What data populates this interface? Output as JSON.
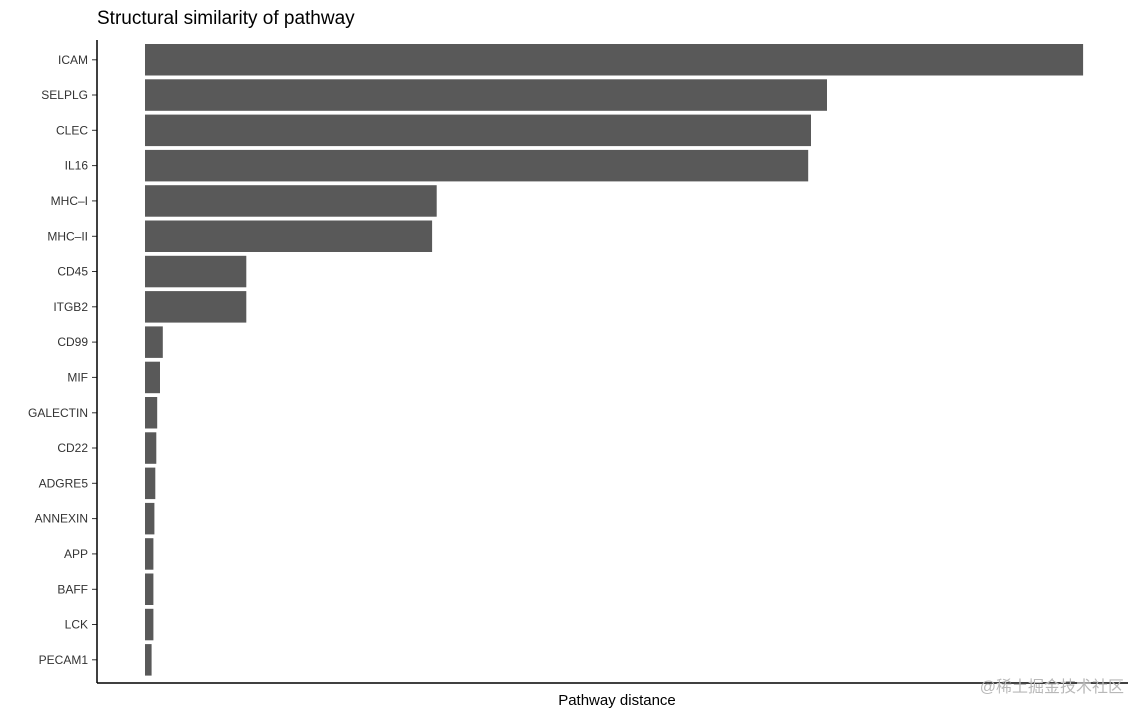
{
  "chart_data": {
    "type": "bar",
    "orientation": "horizontal",
    "title": "Structural similarity of pathway",
    "xlabel": "Pathway distance",
    "ylabel": "",
    "categories": [
      "ICAM",
      "SELPLG",
      "CLEC",
      "IL16",
      "MHC-I",
      "MHC-II",
      "CD45",
      "ITGB2",
      "CD99",
      "MIF",
      "GALECTIN",
      "CD22",
      "ADGRE5",
      "ANNEXIN",
      "APP",
      "BAFF",
      "LCK",
      "PECAM1"
    ],
    "category_labels": [
      "ICAM",
      "SELPLG",
      "CLEC",
      "IL16",
      "MHC–I",
      "MHC–II",
      "CD45",
      "ITGB2",
      "CD99",
      "MIF",
      "GALECTIN",
      "CD22",
      "ADGRE5",
      "ANNEXIN",
      "APP",
      "BAFF",
      "LCK",
      "PECAM1"
    ],
    "values": [
      1.0,
      0.727,
      0.71,
      0.707,
      0.311,
      0.306,
      0.108,
      0.108,
      0.019,
      0.016,
      0.013,
      0.012,
      0.011,
      0.01,
      0.009,
      0.009,
      0.009,
      0.007
    ],
    "xlim": [
      0,
      1.05
    ],
    "x_ticks": false,
    "grid": false,
    "bar_color": "#595959"
  },
  "watermark": "@稀土掘金技术社区"
}
